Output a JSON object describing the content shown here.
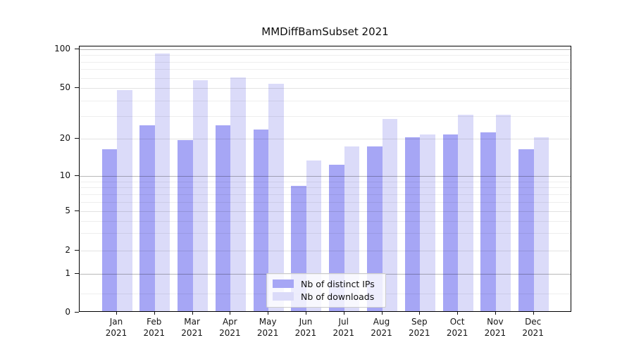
{
  "chart_data": {
    "type": "bar",
    "title": "MMDiffBamSubset 2021",
    "categories": [
      "Jan",
      "Feb",
      "Mar",
      "Apr",
      "May",
      "Jun",
      "Jul",
      "Aug",
      "Sep",
      "Oct",
      "Nov",
      "Dec"
    ],
    "category_year": "2021",
    "series": [
      {
        "name": "Nb of distinct IPs",
        "color": "#a6a6f5",
        "values": [
          16,
          25,
          19,
          25,
          23,
          8,
          12,
          17,
          20,
          21,
          22,
          16
        ]
      },
      {
        "name": "Nb of downloads",
        "color": "#dbdbf9",
        "values": [
          47,
          90,
          56,
          59,
          53,
          13,
          17,
          28,
          21,
          30,
          30,
          20
        ]
      }
    ],
    "yticks": [
      100,
      50,
      20,
      10,
      5,
      2,
      1,
      0
    ],
    "yscale": "log-like (log above 1, linear 0-1)",
    "ylim": [
      0,
      110
    ],
    "grid": true,
    "legend_position": "lower center inside plot"
  }
}
